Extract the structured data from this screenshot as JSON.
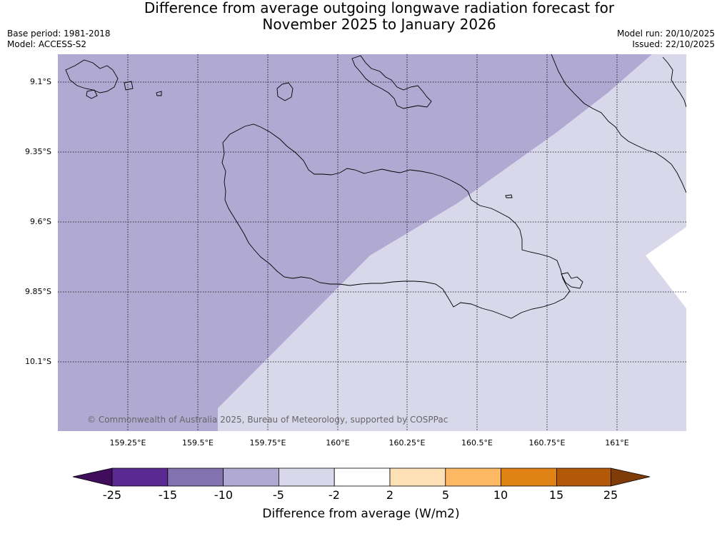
{
  "title": {
    "line1": "Difference from average outgoing longwave radiation forecast for",
    "line2": "November 2025 to January 2026"
  },
  "meta": {
    "base_period": "Base period: 1981-2018",
    "model": "Model: ACCESS-S2",
    "model_run": "Model run: 20/10/2025",
    "issued": "Issued: 22/10/2025"
  },
  "map": {
    "lat_labels": [
      "9.1°S",
      "9.35°S",
      "9.6°S",
      "9.85°S",
      "10.1°S"
    ],
    "lon_labels": [
      "159.25°E",
      "159.5°E",
      "159.75°E",
      "160°E",
      "160.25°E",
      "160.5°E",
      "160.75°E",
      "161°E"
    ],
    "credit": "© Commonwealth of Australia 2025, Bureau of Meteorology, supported by COSPPac",
    "fill_colors": {
      "band_minus10_to_minus5": "#b0aad3",
      "band_minus5_to_minus2": "#d8d8ea",
      "band_minus2_to_2": "#ffffff"
    }
  },
  "colorbar": {
    "label": "Difference from average (W/m2)",
    "ticks": [
      "-25",
      "-15",
      "-10",
      "-5",
      "-2",
      "2",
      "5",
      "10",
      "15",
      "25"
    ],
    "colors": {
      "below_min": "#3f0d5c",
      "c1": "#5a2991",
      "c2": "#8272b0",
      "c3": "#b0aad3",
      "c4": "#d8d8ea",
      "c5": "#ffffff",
      "c6": "#fee0b6",
      "c7": "#fdb863",
      "c8": "#e08214",
      "c9": "#b35806",
      "above_max": "#7f3b08"
    }
  }
}
